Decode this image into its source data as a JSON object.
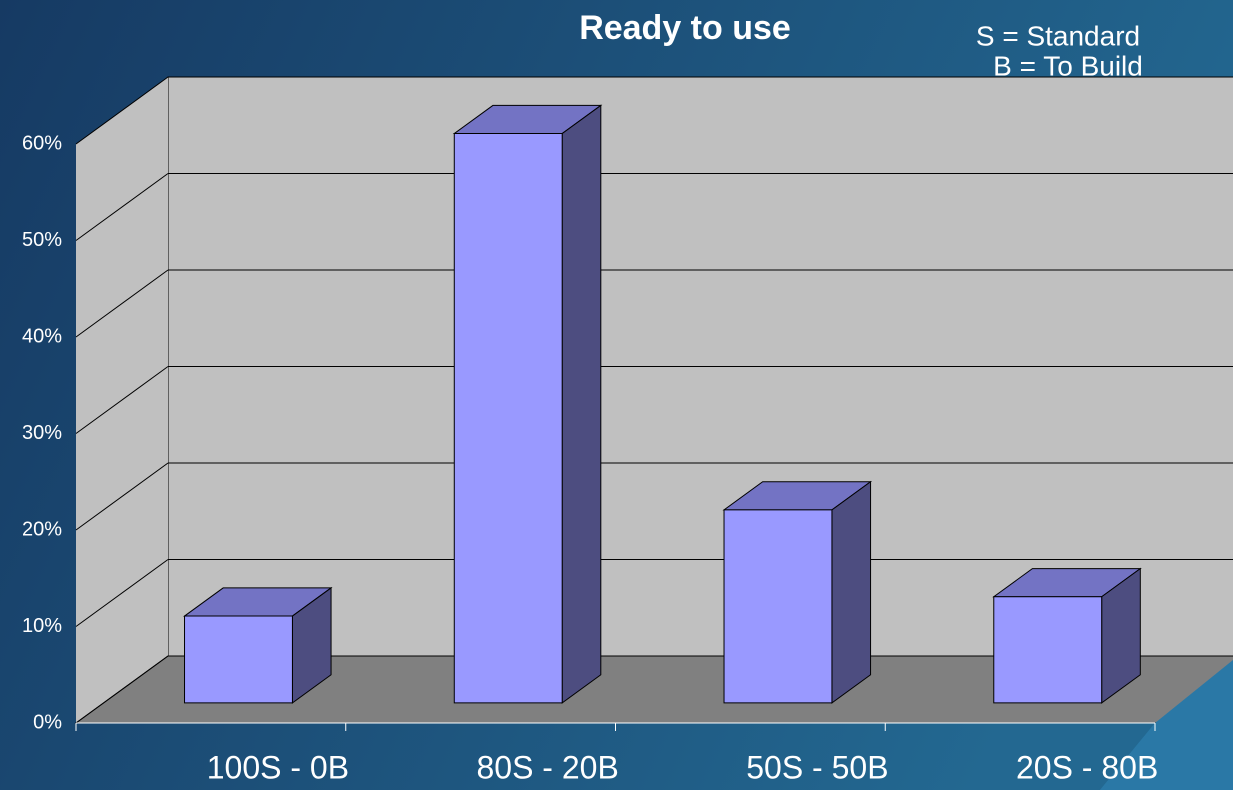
{
  "chart_data": {
    "type": "bar3d",
    "title": "Ready to use",
    "annotations": [
      "S = Standard",
      "B = To Build"
    ],
    "categories": [
      "100S - 0B",
      "80S - 20B",
      "50S - 50B",
      "20S - 80B"
    ],
    "values": [
      9,
      59,
      20,
      11
    ],
    "color": "#9999ff",
    "ylim": [
      0,
      60
    ],
    "yticks": [
      {
        "value": 0,
        "label": "0%"
      },
      {
        "value": 10,
        "label": "10%"
      },
      {
        "value": 20,
        "label": "20%"
      },
      {
        "value": 30,
        "label": "30%"
      },
      {
        "value": 40,
        "label": "40%"
      },
      {
        "value": 50,
        "label": "50%"
      },
      {
        "value": 60,
        "label": "60%"
      }
    ],
    "grid": true
  }
}
